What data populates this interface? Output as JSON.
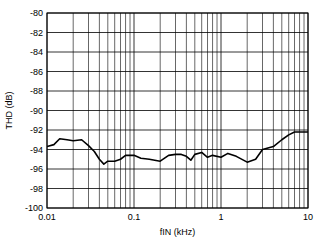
{
  "chart_data": {
    "type": "line",
    "x_label": "fIN (kHz)",
    "y_label": "THD (dB)",
    "log": "x",
    "grid": true,
    "color": "#000000",
    "xlim": [
      0.01,
      10
    ],
    "xticks": [
      0.01,
      0.1,
      1,
      10
    ],
    "ylim": [
      -100,
      -80
    ],
    "yticks": [
      -100,
      -98,
      -96,
      -94,
      -92,
      -90,
      -88,
      -86,
      -84,
      -82,
      -80
    ],
    "x": [
      0.01,
      0.012,
      0.014,
      0.017,
      0.02,
      0.025,
      0.03,
      0.035,
      0.04,
      0.045,
      0.05,
      0.06,
      0.07,
      0.08,
      0.1,
      0.12,
      0.15,
      0.2,
      0.25,
      0.3,
      0.35,
      0.4,
      0.45,
      0.5,
      0.6,
      0.7,
      0.8,
      1,
      1.2,
      1.5,
      2,
      2.5,
      3,
      4,
      5,
      6,
      7,
      10
    ],
    "values": [
      -93.7,
      -93.5,
      -92.9,
      -93.0,
      -93.1,
      -93.0,
      -93.6,
      -94.2,
      -95.0,
      -95.5,
      -95.2,
      -95.2,
      -95.0,
      -94.6,
      -94.6,
      -94.9,
      -95.0,
      -95.2,
      -94.6,
      -94.5,
      -94.5,
      -94.7,
      -95.1,
      -94.5,
      -94.3,
      -94.8,
      -94.6,
      -94.8,
      -94.4,
      -94.7,
      -95.3,
      -95.0,
      -94.0,
      -93.7,
      -93.0,
      -92.5,
      -92.2,
      -92.2
    ]
  }
}
